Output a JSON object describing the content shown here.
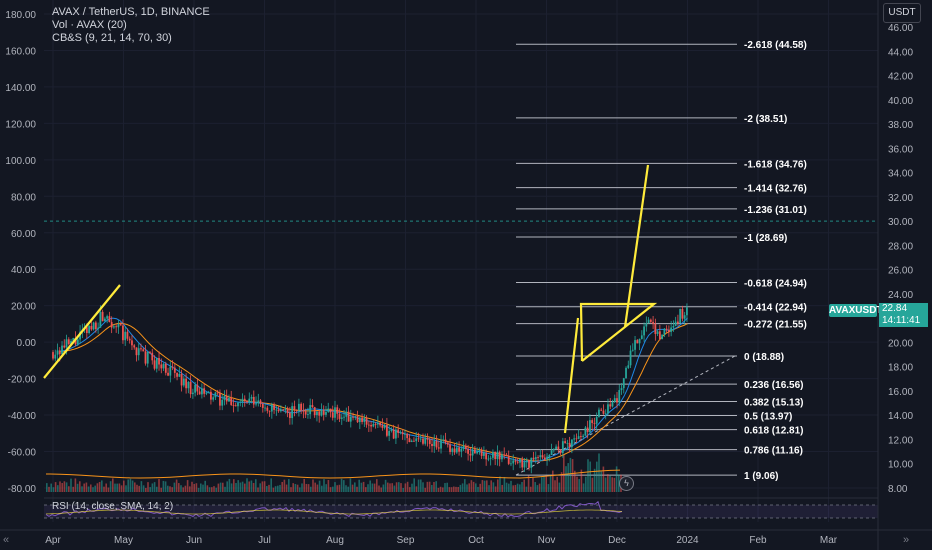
{
  "legend": {
    "symbol": "AVAX / TetherUS, 1D, BINANCE",
    "volume": "Vol · AVAX (20)",
    "indicator": "CB&S (9, 21, 14, 70, 30)"
  },
  "unit_button": "USDT",
  "symbol_tag": "AVAXUSDT",
  "last_price": "22.84",
  "countdown": "14:11:41",
  "rsi_legend": "RSI (14, close, SMA, 14, 2)",
  "nav": {
    "left": "«",
    "right": "»"
  },
  "flash_icon": "ϟ",
  "colors": {
    "background": "#131722",
    "up": "#26a69a",
    "down": "#ef5350",
    "drawing": "#ffeb3b",
    "fib": "#b2b5be",
    "ma_orange": "#f7931a",
    "rsi": "#7e57c2"
  },
  "left_axis": [
    "180.00",
    "160.00",
    "140.00",
    "120.00",
    "100.00",
    "80.00",
    "60.00",
    "40.00",
    "20.00",
    "0.00",
    "-20.00",
    "-40.00",
    "-60.00",
    "-80.00"
  ],
  "right_axis": [
    "46.00",
    "44.00",
    "42.00",
    "40.00",
    "38.00",
    "36.00",
    "34.00",
    "32.00",
    "30.00",
    "28.00",
    "26.00",
    "24.00",
    "22.00",
    "20.00",
    "18.00",
    "16.00",
    "14.00",
    "12.00",
    "10.00",
    "8.00"
  ],
  "time_axis": [
    "Apr",
    "May",
    "Jun",
    "Jul",
    "Aug",
    "Sep",
    "Oct",
    "Nov",
    "Dec",
    "2024",
    "Feb",
    "Mar"
  ],
  "fib_levels": [
    {
      "ratio": "-2.618",
      "price": "44.58",
      "value": 44.58
    },
    {
      "ratio": "-2",
      "price": "38.51",
      "value": 38.51
    },
    {
      "ratio": "-1.618",
      "price": "34.76",
      "value": 34.76
    },
    {
      "ratio": "-1.414",
      "price": "32.76",
      "value": 32.76
    },
    {
      "ratio": "-1.236",
      "price": "31.01",
      "value": 31.01
    },
    {
      "ratio": "-1",
      "price": "28.69",
      "value": 28.69
    },
    {
      "ratio": "-0.618",
      "price": "24.94",
      "value": 24.94
    },
    {
      "ratio": "-0.414",
      "price": "22.94",
      "value": 22.94
    },
    {
      "ratio": "-0.272",
      "price": "21.55",
      "value": 21.55
    },
    {
      "ratio": "0",
      "price": "18.88",
      "value": 18.88
    },
    {
      "ratio": "0.236",
      "price": "16.56",
      "value": 16.56
    },
    {
      "ratio": "0.382",
      "price": "15.13",
      "value": 15.13
    },
    {
      "ratio": "0.5",
      "price": "13.97",
      "value": 13.97
    },
    {
      "ratio": "0.618",
      "price": "12.81",
      "value": 12.81
    },
    {
      "ratio": "0.786",
      "price": "11.16",
      "value": 11.16
    },
    {
      "ratio": "1",
      "price": "9.06",
      "value": 9.06
    }
  ],
  "horizontal_line_price": 30.0,
  "price_series": [
    [
      0,
      19.2
    ],
    [
      0.25,
      19.8
    ],
    [
      0.5,
      21.0
    ],
    [
      0.75,
      22.5
    ],
    [
      1.0,
      20.5
    ],
    [
      1.25,
      19.0
    ],
    [
      1.5,
      18.2
    ],
    [
      1.75,
      17.3
    ],
    [
      2.0,
      16.0
    ],
    [
      2.25,
      15.5
    ],
    [
      2.5,
      15.0
    ],
    [
      2.75,
      15.1
    ],
    [
      3.0,
      14.8
    ],
    [
      3.25,
      14.0
    ],
    [
      3.5,
      14.6
    ],
    [
      3.75,
      14.4
    ],
    [
      4.0,
      14.2
    ],
    [
      4.25,
      13.6
    ],
    [
      4.5,
      13.4
    ],
    [
      4.75,
      12.6
    ],
    [
      5.0,
      12.3
    ],
    [
      5.25,
      12.0
    ],
    [
      5.5,
      11.6
    ],
    [
      5.75,
      11.2
    ],
    [
      6.0,
      10.9
    ],
    [
      6.25,
      10.6
    ],
    [
      6.5,
      10.2
    ],
    [
      6.75,
      10.1
    ],
    [
      7.0,
      10.7
    ],
    [
      7.25,
      11.5
    ],
    [
      7.5,
      12.4
    ],
    [
      7.75,
      14.3
    ],
    [
      8.0,
      15.2
    ],
    [
      8.2,
      19.5
    ],
    [
      8.4,
      21.4
    ],
    [
      8.6,
      20.8
    ],
    [
      8.75,
      21.2
    ],
    [
      9.0,
      22.84
    ]
  ]
}
